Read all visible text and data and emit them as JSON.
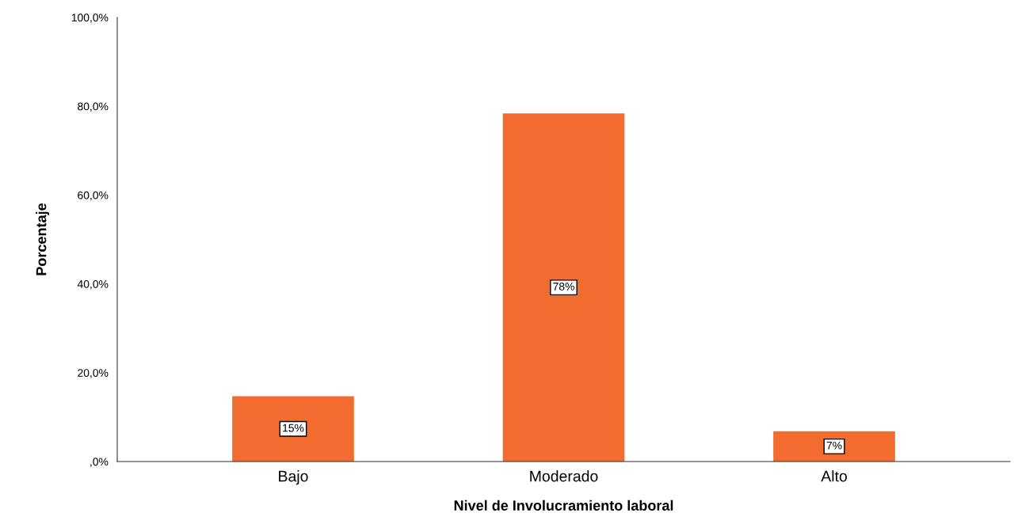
{
  "chart_data": {
    "type": "bar",
    "xlabel": "Nivel de Involucramiento laboral",
    "ylabel": "Porcentaje",
    "categories": [
      "Bajo",
      "Moderado",
      "Alto"
    ],
    "values": [
      14.7,
      78.4,
      6.8
    ],
    "value_labels": [
      "15%",
      "78%",
      "7%"
    ],
    "color": "#f26b2f",
    "ylim": [
      0,
      100
    ],
    "yticks": [
      {
        "value": 0,
        "label": ",0%"
      },
      {
        "value": 20,
        "label": "20,0%"
      },
      {
        "value": 40,
        "label": "40,0%"
      },
      {
        "value": 60,
        "label": "60,0%"
      },
      {
        "value": 80,
        "label": "80,0%"
      },
      {
        "value": 100,
        "label": "100,0%"
      }
    ],
    "grid": false,
    "legend": false
  }
}
